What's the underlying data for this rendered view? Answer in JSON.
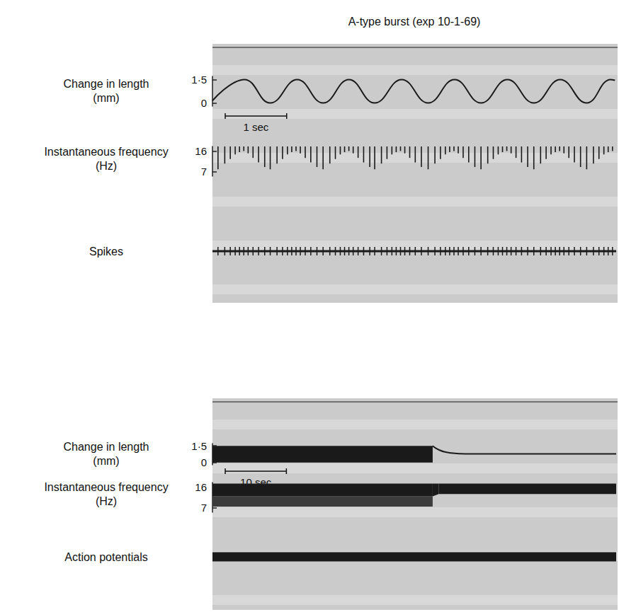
{
  "chart_data": [
    {
      "type": "recording",
      "title": "A-type burst (exp 10-1-69)",
      "xlim": [
        0,
        6.57
      ],
      "tick_labels": "y",
      "scale_bar": {
        "length": 1,
        "label": "1 sec"
      },
      "rows": [
        {
          "label": "Change in length (mm)",
          "ylim": [
            -0.2,
            1.7
          ],
          "yticks": [
            {
              "value": 1.5,
              "label": "1·5"
            },
            0
          ],
          "series": [
            {
              "type": "line",
              "color": "#1a1a1a",
              "x": [
                0,
                0.52,
                0.94,
                1.38,
                1.8,
                2.22,
                2.64,
                3.08,
                3.51,
                3.94,
                4.37,
                4.8,
                5.23,
                5.66,
                6.09,
                6.48,
                6.55
              ],
              "values": [
                0.15,
                1.5,
                0,
                1.5,
                0,
                1.5,
                0,
                1.5,
                0,
                1.5,
                0,
                1.5,
                0,
                1.5,
                0,
                1.5,
                1.45
              ]
            }
          ]
        },
        {
          "label": "Instantaneous frequency (Hz)",
          "ylim": [
            5,
            18
          ],
          "yticks": [
            16,
            7
          ],
          "series": [
            {
              "type": "spikes",
              "color": "#1a1a1a",
              "x": [
                0.09,
                0.2,
                0.29,
                0.37,
                0.44,
                0.51,
                0.58,
                0.66,
                0.75,
                0.85,
                0.94,
                1.05,
                1.14,
                1.22,
                1.29,
                1.36,
                1.43,
                1.51,
                1.6,
                1.7,
                1.8,
                1.91,
                2.0,
                2.08,
                2.15,
                2.22,
                2.29,
                2.37,
                2.46,
                2.56,
                2.64,
                2.75,
                2.84,
                2.92,
                2.99,
                3.06,
                3.13,
                3.21,
                3.3,
                3.4,
                3.51,
                3.62,
                3.71,
                3.79,
                3.86,
                3.93,
                4.0,
                4.08,
                4.17,
                4.27,
                4.37,
                4.48,
                4.57,
                4.65,
                4.72,
                4.79,
                4.86,
                4.94,
                5.03,
                5.13,
                5.23,
                5.34,
                5.43,
                5.51,
                5.58,
                5.65,
                5.72,
                5.8,
                5.89,
                5.99,
                6.09,
                6.2,
                6.29,
                6.37,
                6.44,
                6.51
              ],
              "values": [
                8,
                10.5,
                12.5,
                14.5,
                15.5,
                16,
                15,
                13,
                11,
                9,
                8,
                10.5,
                12.5,
                14.5,
                15.5,
                16,
                15,
                13,
                11,
                9,
                8,
                10.5,
                12.5,
                14.5,
                15.5,
                16,
                15,
                13,
                11,
                9,
                8,
                10.5,
                12.5,
                14.5,
                15.5,
                16,
                15,
                13,
                11,
                9,
                8,
                10.5,
                12.5,
                14.5,
                15.5,
                16,
                15,
                13,
                11,
                9,
                8,
                10.5,
                12.5,
                14.5,
                15.5,
                16,
                15,
                13,
                11,
                9,
                8,
                10.5,
                12.5,
                14.5,
                15.5,
                16,
                15,
                13,
                11,
                9,
                8,
                10.5,
                12.5,
                14.5,
                15.5,
                16
              ]
            }
          ]
        },
        {
          "label": "Spikes",
          "series": [
            {
              "type": "raster",
              "color": "#1a1a1a",
              "x": [
                0.09,
                0.2,
                0.29,
                0.37,
                0.44,
                0.51,
                0.58,
                0.66,
                0.75,
                0.85,
                0.94,
                1.05,
                1.14,
                1.22,
                1.29,
                1.36,
                1.43,
                1.51,
                1.6,
                1.7,
                1.8,
                1.91,
                2.0,
                2.08,
                2.15,
                2.22,
                2.29,
                2.37,
                2.46,
                2.56,
                2.64,
                2.75,
                2.84,
                2.92,
                2.99,
                3.06,
                3.13,
                3.21,
                3.3,
                3.4,
                3.51,
                3.62,
                3.71,
                3.79,
                3.86,
                3.93,
                4.0,
                4.08,
                4.17,
                4.27,
                4.37,
                4.48,
                4.57,
                4.65,
                4.72,
                4.79,
                4.86,
                4.94,
                5.03,
                5.13,
                5.23,
                5.34,
                5.43,
                5.51,
                5.58,
                5.65,
                5.72,
                5.8,
                5.89,
                5.99,
                6.09,
                6.2,
                6.29,
                6.37,
                6.44,
                6.51
              ]
            }
          ]
        }
      ]
    },
    {
      "type": "recording",
      "xlim": [
        0,
        66
      ],
      "tick_labels": "y",
      "scale_bar": {
        "length": 10,
        "label": "10 sec"
      },
      "rows": [
        {
          "label": "Change in length (mm)",
          "ylim": [
            -0.2,
            1.7
          ],
          "yticks": [
            {
              "value": 1.5,
              "label": "1·5"
            },
            0
          ],
          "series": [
            {
              "type": "band",
              "color": "#1a1a1a",
              "x": [
                0,
                36
              ],
              "low": [
                0,
                0
              ],
              "high": [
                1.5,
                1.5
              ]
            },
            {
              "type": "line",
              "color": "#1a1a1a",
              "x": [
                36,
                36.5,
                37.2,
                38,
                39,
                40.5,
                42,
                66
              ],
              "values": [
                1.5,
                1.3,
                1.1,
                0.95,
                0.86,
                0.8,
                0.78,
                0.78
              ]
            }
          ]
        },
        {
          "label": "Instantaneous frequency (Hz)",
          "ylim": [
            5,
            18
          ],
          "yticks": [
            16,
            7
          ],
          "series": [
            {
              "type": "band",
              "color": "#3c3c3c",
              "x": [
                0,
                36
              ],
              "low": [
                7.5,
                7.5
              ],
              "high": [
                12,
                12
              ]
            },
            {
              "type": "band",
              "color": "#1a1a1a",
              "x": [
                0,
                36,
                37,
                66
              ],
              "low": [
                12,
                12,
                13,
                13
              ],
              "high": [
                17.5,
                17.5,
                17.5,
                17.5
              ]
            }
          ]
        },
        {
          "label": "Action potentials",
          "series": [
            {
              "type": "raster_band",
              "color": "#1a1a1a",
              "x": [
                0,
                66
              ]
            }
          ]
        }
      ]
    }
  ]
}
